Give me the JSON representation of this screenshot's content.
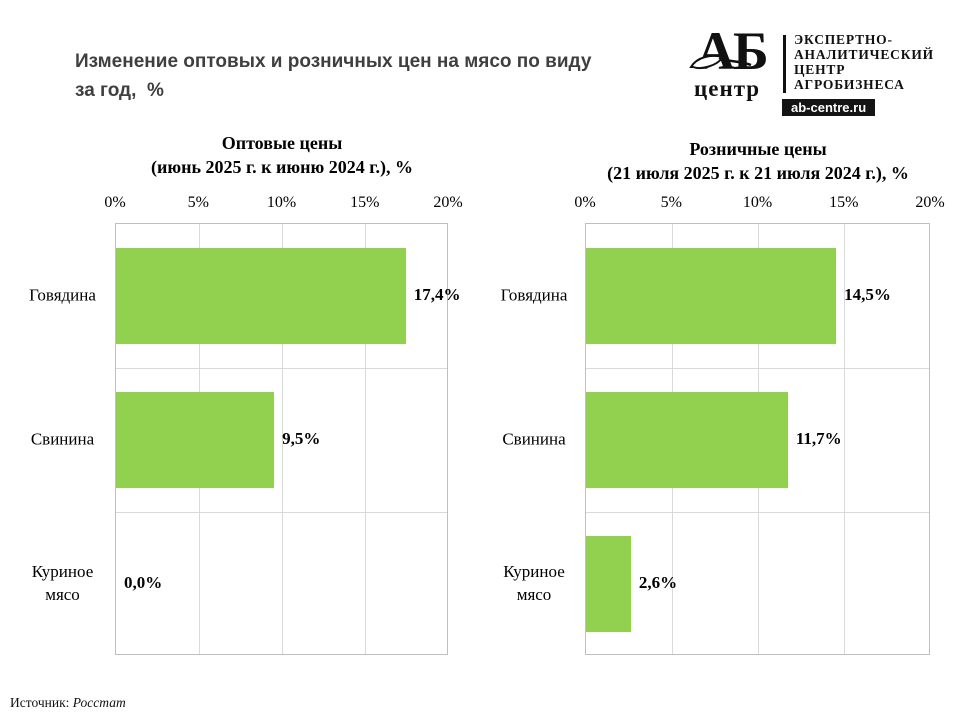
{
  "page": {
    "title_line1": "Изменение оптовых и розничных цен на мясо по виду",
    "title_line2": "за год,  %",
    "source_label": "Источник:",
    "source_value": "Росстат"
  },
  "logo": {
    "monogram": "АБ",
    "word": "центр",
    "org_lines": [
      "ЭКСПЕРТНО-",
      "АНАЛИТИЧЕСКИЙ",
      "ЦЕНТР",
      "АГРОБИЗНЕСА"
    ],
    "domain": "ab-centre.ru"
  },
  "colors": {
    "accent_green": "#92D050",
    "grid": "#D9D9D9",
    "plot_border": "#BFBFBF",
    "title_gray": "#3F3F3F"
  },
  "chart_data": [
    {
      "type": "bar",
      "orientation": "horizontal",
      "title_line1": "Оптовые цены",
      "title_line2": "(июнь 2025 г. к июню 2024 г.), %",
      "categories": [
        "Говядина",
        "Свинина",
        "Куриное мясо"
      ],
      "values": [
        17.4,
        9.5,
        0.0
      ],
      "value_labels": [
        "17,4%",
        "9,5%",
        "0,0%"
      ],
      "xlim": [
        0,
        20
      ],
      "ticks": [
        "0%",
        "5%",
        "10%",
        "15%",
        "20%"
      ],
      "tick_values": [
        0,
        5,
        10,
        15,
        20
      ],
      "bar_color": "#92D050",
      "grid": true,
      "legend": "none"
    },
    {
      "type": "bar",
      "orientation": "horizontal",
      "title_line1": "Розничные цены",
      "title_line2": "(21 июля 2025 г. к 21 июля 2024 г.), %",
      "categories": [
        "Говядина",
        "Свинина",
        "Куриное мясо"
      ],
      "values": [
        14.5,
        11.7,
        2.6
      ],
      "value_labels": [
        "14,5%",
        "11,7%",
        "2,6%"
      ],
      "xlim": [
        0,
        20
      ],
      "ticks": [
        "0%",
        "5%",
        "10%",
        "15%",
        "20%"
      ],
      "tick_values": [
        0,
        5,
        10,
        15,
        20
      ],
      "bar_color": "#92D050",
      "grid": true,
      "legend": "none"
    }
  ]
}
